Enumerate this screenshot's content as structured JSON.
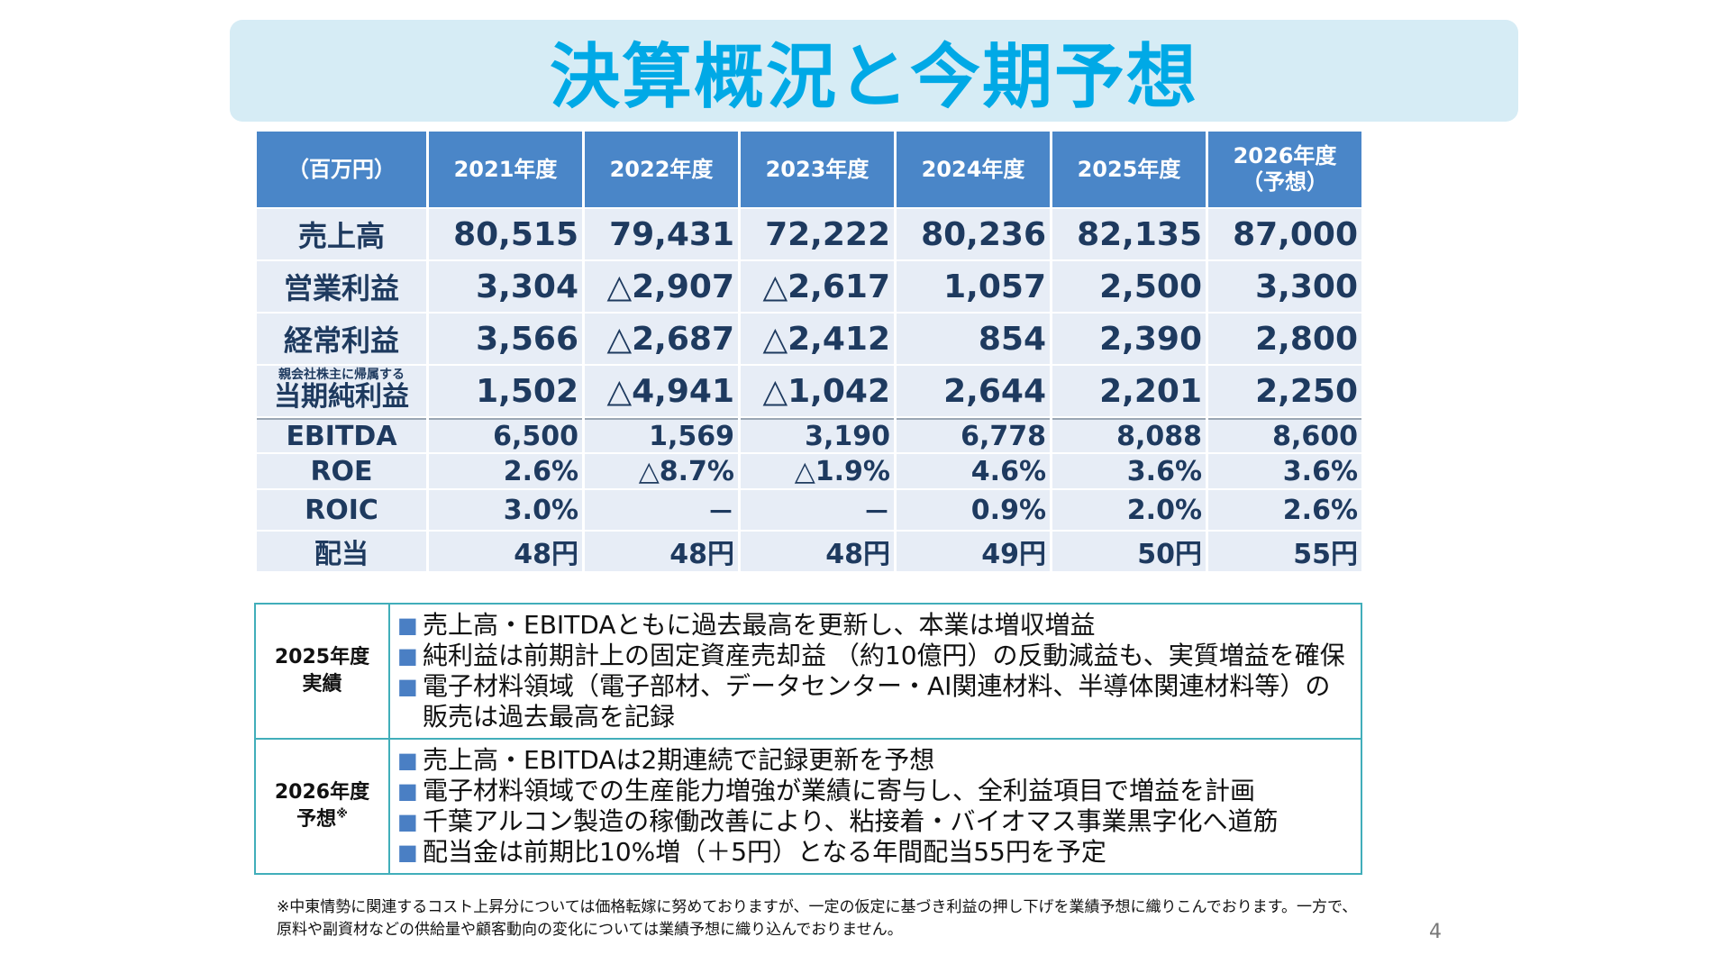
{
  "title": "決算概況と今期予想",
  "table": {
    "headers": [
      {
        "line1": "（百万円）",
        "line2": ""
      },
      {
        "line1": "2021年度",
        "line2": ""
      },
      {
        "line1": "2022年度",
        "line2": ""
      },
      {
        "line1": "2023年度",
        "line2": ""
      },
      {
        "line1": "2024年度",
        "line2": ""
      },
      {
        "line1": "2025年度",
        "line2": ""
      },
      {
        "line1": "2026年度",
        "line2": "（予想）"
      }
    ],
    "rows": [
      {
        "sub": "",
        "label": "売上高",
        "values": [
          "80,515",
          "79,431",
          "72,222",
          "80,236",
          "82,135",
          "87,000"
        ]
      },
      {
        "sub": "",
        "label": "営業利益",
        "values": [
          "3,304",
          "△2,907",
          "△2,617",
          "1,057",
          "2,500",
          "3,300"
        ]
      },
      {
        "sub": "",
        "label": "経常利益",
        "values": [
          "3,566",
          "△2,687",
          "△2,412",
          "854",
          "2,390",
          "2,800"
        ]
      },
      {
        "sub": "親会社株主に帰属する",
        "label": "当期純利益",
        "values": [
          "1,502",
          "△4,941",
          "△1,042",
          "2,644",
          "2,201",
          "2,250"
        ]
      },
      {
        "sub": "",
        "label": "EBITDA",
        "values": [
          "6,500",
          "1,569",
          "3,190",
          "6,778",
          "8,088",
          "8,600"
        ]
      },
      {
        "sub": "",
        "label": "ROE",
        "values": [
          "2.6%",
          "△8.7%",
          "△1.9%",
          "4.6%",
          "3.6%",
          "3.6%"
        ]
      },
      {
        "sub": "",
        "label": "ROIC",
        "values": [
          "3.0%",
          "－",
          "－",
          "0.9%",
          "2.0%",
          "2.6%"
        ]
      },
      {
        "sub": "",
        "label": "配当",
        "values": [
          "48円",
          "48円",
          "48円",
          "49円",
          "50円",
          "55円"
        ]
      }
    ]
  },
  "notes": [
    {
      "year_line1": "2025年度",
      "year_line2": "実績",
      "mark": "",
      "bullets": [
        "売上高・EBITDAともに過去最高を更新し、本業は増収増益",
        "純利益は前期計上の固定資産売却益 （約10億円）の反動減益も、実質増益を確保",
        "電子材料領域（電子部材、データセンター・AI関連材料、半導体関連材料等）の販売は過去最高を記録"
      ]
    },
    {
      "year_line1": "2026年度",
      "year_line2": "予想",
      "mark": "※",
      "bullets": [
        "売上高・EBITDAは2期連続で記録更新を予想",
        "電子材料領域での生産能力増強が業績に寄与し、全利益項目で増益を計画",
        "千葉アルコン製造の稼働改善により、粘接着・バイオマス事業黒字化へ道筋",
        "配当金は前期比10%増（＋5円）となる年間配当55円を予定"
      ]
    }
  ],
  "bullet_symbol": "■",
  "footnote": "※中東情勢に関連するコスト上昇分については価格転嫁に努めておりますが、一定の仮定に基づき利益の押し下げを業績予想に織りこんでおります。一方で、原料や副資材などの供給量や顧客動向の変化については業績予想に織り込んでおりません。",
  "page_number": "4",
  "colors": {
    "title": "#00a9e6",
    "banner": "#d6ecf5",
    "header": "#4a86c8",
    "cell": "#e7edf6",
    "value_text": "#1e3a5f",
    "notes_border": "#41aeba",
    "bullet": "#4a7fc4"
  }
}
